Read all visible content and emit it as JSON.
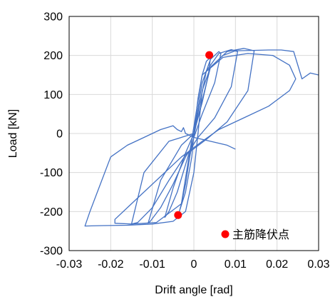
{
  "chart_data": {
    "type": "scatter",
    "title": "",
    "xlabel": "Drift angle [rad]",
    "ylabel": "Load [kN]",
    "xlim": [
      -0.03,
      0.03
    ],
    "ylim": [
      -300,
      300
    ],
    "x_ticks": [
      "-0.03",
      "-0.02",
      "-0.01",
      "0",
      "0.01",
      "0.02",
      "0.03"
    ],
    "y_ticks": [
      "300",
      "200",
      "100",
      "0",
      "-100",
      "-200",
      "-300"
    ],
    "grid": true,
    "legend_position": "bottom-right",
    "series": [
      {
        "name": "",
        "color": "#4472c4",
        "style": "line",
        "loops": [
          {
            "x": [
              0,
              0.001,
              0.002,
              0.003,
              0.004,
              0.0035,
              0.002,
              0.0005,
              -0.001,
              -0.002,
              -0.003,
              -0.0035,
              -0.002,
              -0.0005,
              0
            ],
            "y": [
              0,
              90,
              150,
              185,
              195,
              150,
              80,
              20,
              -60,
              -130,
              -180,
              -200,
              -150,
              -60,
              0
            ]
          },
          {
            "x": [
              0,
              0.002,
              0.004,
              0.006,
              0.0065,
              0.005,
              0.002,
              0,
              -0.002,
              -0.004,
              -0.006,
              -0.007,
              -0.005,
              -0.002,
              0
            ],
            "y": [
              0,
              130,
              190,
              210,
              205,
              130,
              50,
              -10,
              -80,
              -150,
              -200,
              -215,
              -140,
              -50,
              0
            ]
          },
          {
            "x": [
              0,
              0.003,
              0.006,
              0.009,
              0.0105,
              0.009,
              0.005,
              0.001,
              -0.002,
              -0.005,
              -0.008,
              -0.0105,
              -0.011,
              -0.008,
              -0.003,
              0
            ],
            "y": [
              0,
              160,
              205,
              215,
              210,
              120,
              40,
              -10,
              -60,
              -130,
              -190,
              -225,
              -230,
              -120,
              -30,
              0
            ]
          },
          {
            "x": [
              0,
              0.004,
              0.008,
              0.012,
              0.0145,
              0.013,
              0.008,
              0.003,
              -0.002,
              -0.006,
              -0.01,
              -0.0135,
              -0.015,
              -0.012,
              -0.006,
              0
            ],
            "y": [
              0,
              170,
              210,
              218,
              212,
              110,
              30,
              -15,
              -55,
              -120,
              -190,
              -228,
              -232,
              -100,
              -20,
              0
            ]
          },
          {
            "x": [
              0.002,
              0.007,
              0.013,
              0.019,
              0.023,
              0.0245,
              0.023,
              0.018,
              0.012,
              0.006,
              0.002,
              -0.003,
              -0.009,
              -0.015,
              -0.019,
              -0.019,
              -0.015,
              -0.009,
              -0.003,
              0.002
            ],
            "y": [
              150,
              195,
              205,
              200,
              175,
              140,
              110,
              70,
              40,
              10,
              -20,
              -60,
              -120,
              -180,
              -220,
              -230,
              -232,
              -228,
              -180,
              150
            ]
          },
          {
            "x": [
              -0.02,
              -0.025,
              -0.0262,
              -0.022,
              -0.016,
              -0.01,
              -0.005,
              -0.002,
              0,
              0.001,
              0.002,
              0.004,
              0.007,
              0.01,
              0.014,
              0.018,
              0.021,
              0.024,
              0.026,
              0.028,
              0.03
            ],
            "y": [
              -60,
              -200,
              -237,
              -236,
              -235,
              -232,
              -225,
              -200,
              -100,
              0,
              110,
              170,
              200,
              212,
              213,
              214,
              214,
              210,
              140,
              155,
              150
            ]
          },
          {
            "x": [
              -0.02,
              -0.016,
              -0.012,
              -0.008,
              -0.005,
              -0.004,
              -0.003,
              -0.0025,
              -0.002,
              -0.001,
              0,
              0.004,
              0.008,
              0.01
            ],
            "y": [
              -60,
              -30,
              -10,
              10,
              20,
              10,
              5,
              15,
              0,
              -5,
              -10,
              -20,
              -30,
              -40
            ]
          }
        ]
      },
      {
        "name": "主筋降伏点",
        "color": "#ff0000",
        "style": "marker",
        "x": [
          0.0037,
          -0.0038
        ],
        "y": [
          201,
          -209
        ]
      }
    ]
  }
}
